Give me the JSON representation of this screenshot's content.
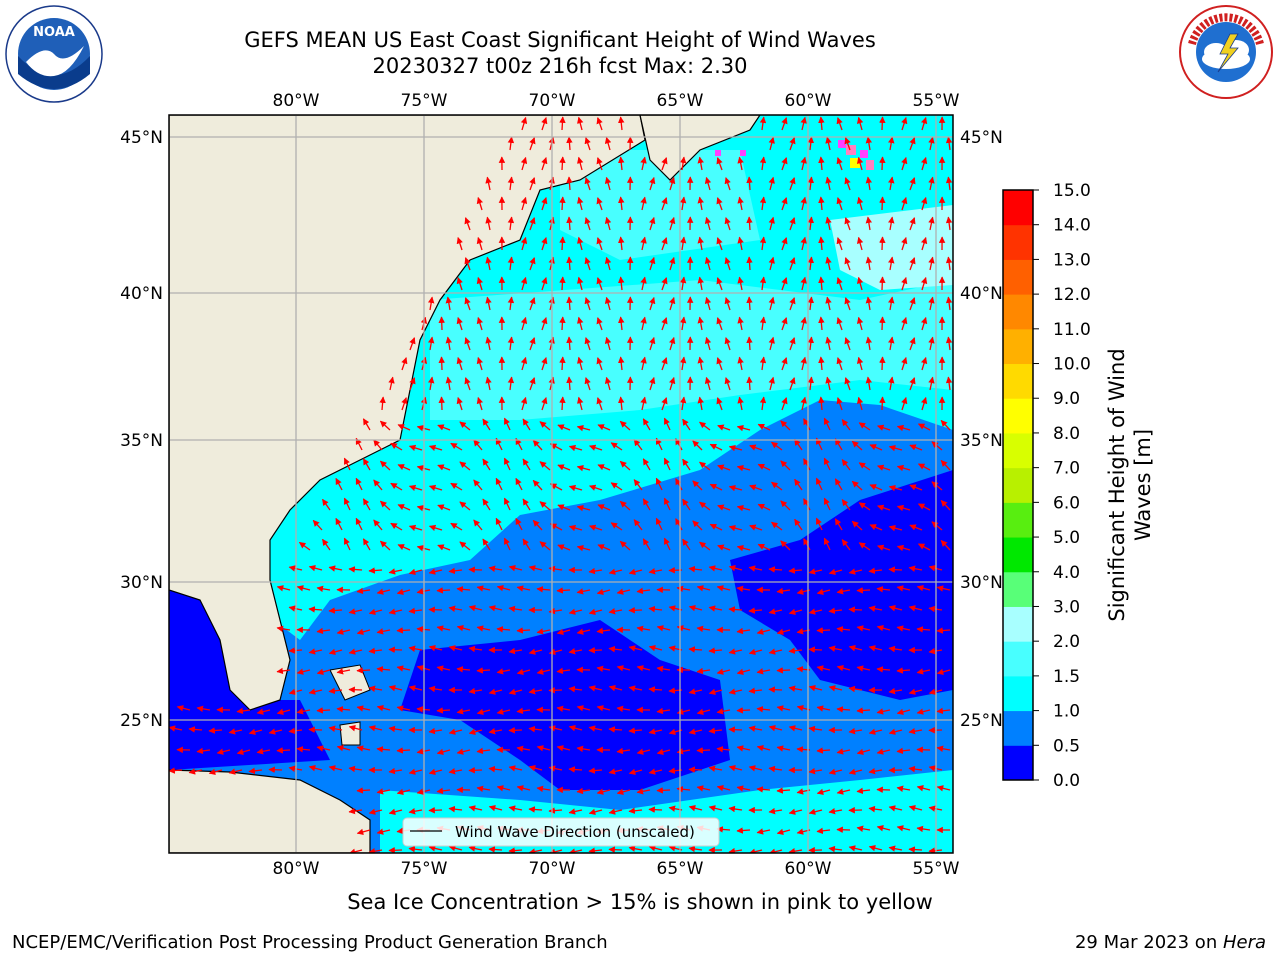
{
  "header": {
    "title_line1": "GEFS MEAN US East Coast Significant Height of Wind Waves",
    "title_line2": "20230327 t00z 216h fcst   Max: 2.30"
  },
  "logos": {
    "left": {
      "text": "NOAA",
      "ring_text": "NATIONAL OCEANIC AND ATMOSPHERIC ADMINISTRATION · U.S. DEPARTMENT OF COMMERCE"
    },
    "right": {
      "ring_text": "NATIONAL WEATHER SERVICE"
    }
  },
  "map": {
    "lon_labels": [
      "80°W",
      "75°W",
      "70°W",
      "65°W",
      "60°W",
      "55°W"
    ],
    "lat_labels": [
      "45°N",
      "40°N",
      "35°N",
      "30°N",
      "25°N"
    ],
    "legend_text": "Wind Wave Direction (unscaled)",
    "colors": {
      "land": "#efecdc",
      "coast": "#000000",
      "grid": "#b0b0b0",
      "arrow": "#ff0000"
    }
  },
  "colorbar": {
    "label": "Significant Height of Wind Waves [m]",
    "label_line1": "Significant Height of Wind",
    "label_line2": "Waves [m]",
    "ticks": [
      "0.0",
      "0.5",
      "1.0",
      "1.5",
      "2.0",
      "3.0",
      "4.0",
      "5.0",
      "6.0",
      "7.0",
      "8.0",
      "9.0",
      "10.0",
      "11.0",
      "12.0",
      "13.0",
      "14.0",
      "15.0"
    ],
    "colors": [
      "#0000ff",
      "#0080ff",
      "#00ffff",
      "#48ffff",
      "#a8ffff",
      "#58ff78",
      "#00e800",
      "#58ee10",
      "#b8f000",
      "#d8ff00",
      "#ffff00",
      "#ffda00",
      "#ffb000",
      "#ff8800",
      "#ff6000",
      "#ff3300",
      "#ff0000"
    ]
  },
  "caption": "Sea Ice Concentration > 15% is shown in pink to yellow",
  "footer": {
    "left": "NCEP/EMC/Verification Post Processing Product Generation Branch",
    "date": "29 Mar 2023 on ",
    "machine": "Hera"
  }
}
